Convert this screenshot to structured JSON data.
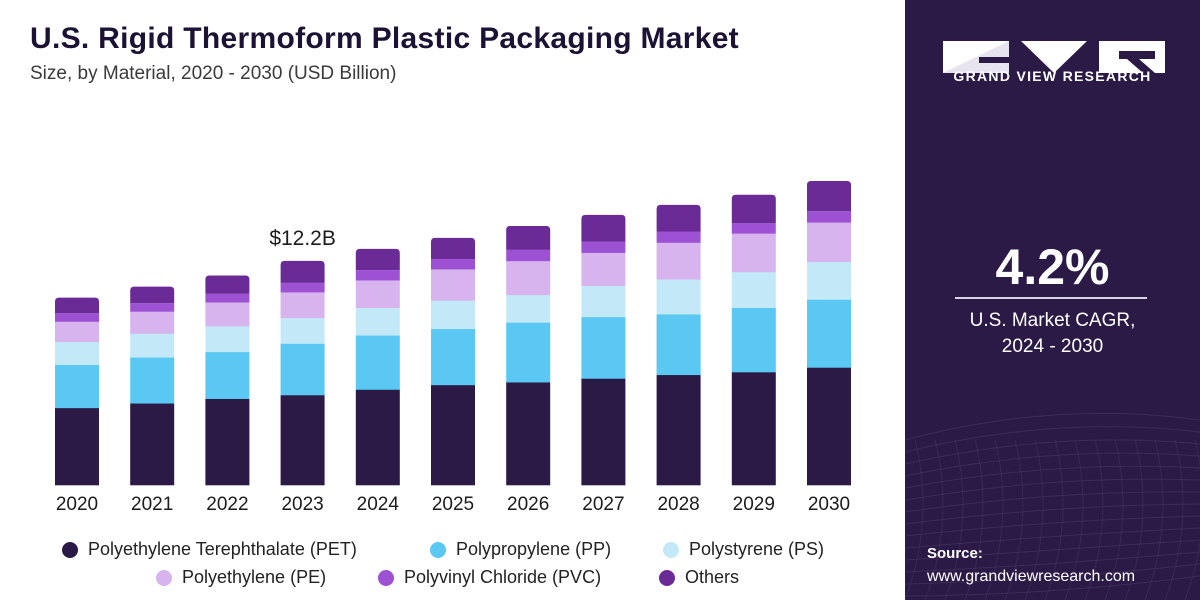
{
  "header": {
    "title": "U.S. Rigid Thermoform Plastic Packaging Market",
    "subtitle": "Size, by Material, 2020 - 2030 (USD Billion)"
  },
  "chart_data": {
    "type": "bar",
    "stacked": true,
    "categories": [
      "2020",
      "2021",
      "2022",
      "2023",
      "2024",
      "2025",
      "2026",
      "2027",
      "2028",
      "2029",
      "2030"
    ],
    "series": [
      {
        "name": "Polyethylene Terephthalate (PET)",
        "color": "#2b1a45",
        "values": [
          4.2,
          4.45,
          4.7,
          4.9,
          5.2,
          5.45,
          5.6,
          5.8,
          6.0,
          6.15,
          6.4
        ]
      },
      {
        "name": "Polypropylene (PP)",
        "color": "#5ac8f2",
        "values": [
          2.35,
          2.5,
          2.55,
          2.8,
          2.95,
          3.05,
          3.25,
          3.35,
          3.3,
          3.5,
          3.7
        ]
      },
      {
        "name": "Polystyrene (PS)",
        "color": "#c3e8f8",
        "values": [
          1.25,
          1.3,
          1.4,
          1.4,
          1.5,
          1.55,
          1.5,
          1.7,
          1.9,
          1.95,
          2.05
        ]
      },
      {
        "name": "Polyethylene (PE)",
        "color": "#d7b4ee",
        "values": [
          1.1,
          1.2,
          1.3,
          1.4,
          1.5,
          1.7,
          1.85,
          1.8,
          2.0,
          2.1,
          2.15
        ]
      },
      {
        "name": "Polyvinyl Chloride (PVC)",
        "color": "#9c52d3",
        "values": [
          0.45,
          0.45,
          0.45,
          0.5,
          0.55,
          0.55,
          0.6,
          0.6,
          0.6,
          0.55,
          0.6
        ]
      },
      {
        "name": "Others",
        "color": "#6b2b97",
        "values": [
          0.85,
          0.9,
          1.0,
          1.2,
          1.15,
          1.15,
          1.3,
          1.45,
          1.45,
          1.55,
          1.65
        ]
      }
    ],
    "annotations": [
      {
        "category": "2023",
        "text": "$12.2B"
      }
    ],
    "ylim": [
      0,
      21.5
    ],
    "grid": false,
    "legend_position": "bottom"
  },
  "sidebar": {
    "brand": "GRAND VIEW RESEARCH",
    "cagr_value": "4.2%",
    "cagr_label_line1": "U.S. Market CAGR,",
    "cagr_label_line2": "2024 - 2030",
    "source_label": "Source:",
    "source_url": "www.grandviewresearch.com",
    "logo_color": "#ffffff",
    "accent_color": "#2b1a45"
  }
}
